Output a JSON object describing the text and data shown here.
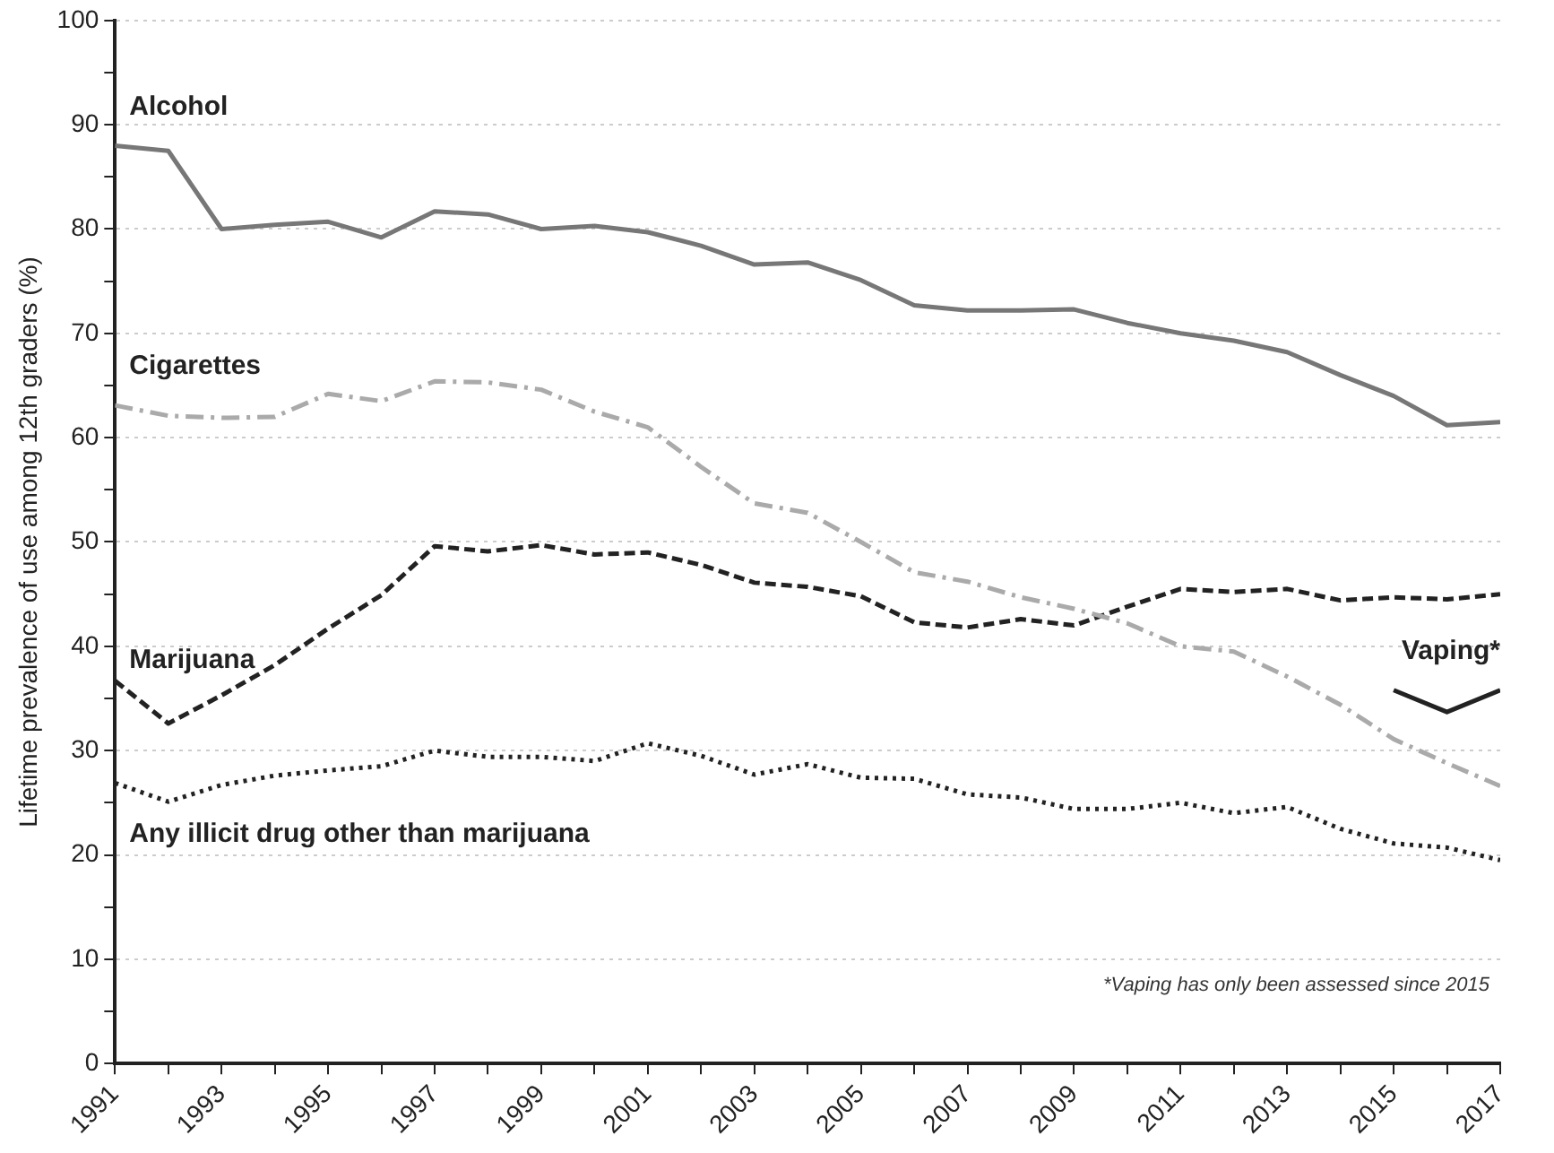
{
  "chart_data": {
    "type": "line",
    "ylabel": "Lifetime prevalence of use among 12th graders (%)",
    "x": [
      1991,
      1992,
      1993,
      1994,
      1995,
      1996,
      1997,
      1998,
      1999,
      2000,
      2001,
      2002,
      2003,
      2004,
      2005,
      2006,
      2007,
      2008,
      2009,
      2010,
      2011,
      2012,
      2013,
      2014,
      2015,
      2016,
      2017
    ],
    "series": [
      {
        "name": "Alcohol",
        "color": "#777777",
        "line_style": "solid",
        "values": [
          88.0,
          87.5,
          80.0,
          80.4,
          80.7,
          79.2,
          81.7,
          81.4,
          80.0,
          80.3,
          79.7,
          78.4,
          76.6,
          76.8,
          75.1,
          72.7,
          72.2,
          72.2,
          72.3,
          71.0,
          70.0,
          69.3,
          68.2,
          66.0,
          64.0,
          61.2,
          61.5
        ]
      },
      {
        "name": "Cigarettes",
        "color": "#aaaaaa",
        "line_style": "dashdot",
        "values": [
          63.1,
          62.1,
          61.9,
          62.0,
          64.2,
          63.5,
          65.4,
          65.3,
          64.6,
          62.5,
          61.0,
          57.2,
          53.7,
          52.8,
          50.0,
          47.1,
          46.2,
          44.7,
          43.6,
          42.2,
          40.0,
          39.5,
          37.1,
          34.4,
          31.1,
          28.8,
          26.6
        ]
      },
      {
        "name": "Marijuana",
        "color": "#222222",
        "line_style": "dashed",
        "values": [
          36.7,
          32.6,
          35.3,
          38.2,
          41.7,
          44.9,
          49.6,
          49.1,
          49.7,
          48.8,
          49.0,
          47.8,
          46.1,
          45.7,
          44.8,
          42.3,
          41.8,
          42.6,
          42.0,
          43.8,
          45.5,
          45.2,
          45.5,
          44.4,
          44.7,
          44.5,
          45.0
        ]
      },
      {
        "name": "Any illicit drug other than marijuana",
        "color": "#222222",
        "line_style": "dotted",
        "values": [
          26.9,
          25.1,
          26.7,
          27.6,
          28.1,
          28.5,
          30.0,
          29.4,
          29.4,
          29.0,
          30.7,
          29.5,
          27.7,
          28.7,
          27.4,
          27.3,
          25.8,
          25.5,
          24.4,
          24.4,
          25.0,
          24.0,
          24.6,
          22.5,
          21.1,
          20.7,
          19.5
        ]
      },
      {
        "name": "Vaping*",
        "color": "#222222",
        "line_style": "solid",
        "x": [
          2015,
          2016,
          2017
        ],
        "values": [
          35.8,
          33.7,
          35.8
        ]
      }
    ],
    "xlim": [
      1991,
      2017
    ],
    "xticks": [
      1991,
      {
        "value": 1992,
        "label": null
      },
      1993,
      {
        "value": 1994,
        "label": null
      },
      1995,
      {
        "value": 1996,
        "label": null
      },
      1997,
      {
        "value": 1998,
        "label": null
      },
      1999,
      {
        "value": 2000,
        "label": null
      },
      2001,
      {
        "value": 2002,
        "label": null
      },
      2003,
      {
        "value": 2004,
        "label": null
      },
      2005,
      {
        "value": 2006,
        "label": null
      },
      2007,
      {
        "value": 2008,
        "label": null
      },
      2009,
      {
        "value": 2010,
        "label": null
      },
      2011,
      {
        "value": 2012,
        "label": null
      },
      2013,
      {
        "value": 2014,
        "label": null
      },
      2015,
      {
        "value": 2016,
        "label": null
      },
      2017
    ],
    "ylim": [
      0,
      100
    ],
    "yticks": [
      0,
      {
        "value": 5,
        "label": null
      },
      10,
      {
        "value": 15,
        "label": null
      },
      20,
      {
        "value": 25,
        "label": null
      },
      30,
      {
        "value": 35,
        "label": null
      },
      40,
      {
        "value": 45,
        "label": null
      },
      50,
      {
        "value": 55,
        "label": null
      },
      60,
      {
        "value": 65,
        "label": null
      },
      70,
      {
        "value": 75,
        "label": null
      },
      80,
      {
        "value": 85,
        "label": null
      },
      90,
      {
        "value": 95,
        "label": null
      },
      100
    ],
    "grid": "y",
    "legend": false,
    "marker": "none",
    "annotations": [
      "*Vaping has only been assessed since 2015"
    ]
  }
}
